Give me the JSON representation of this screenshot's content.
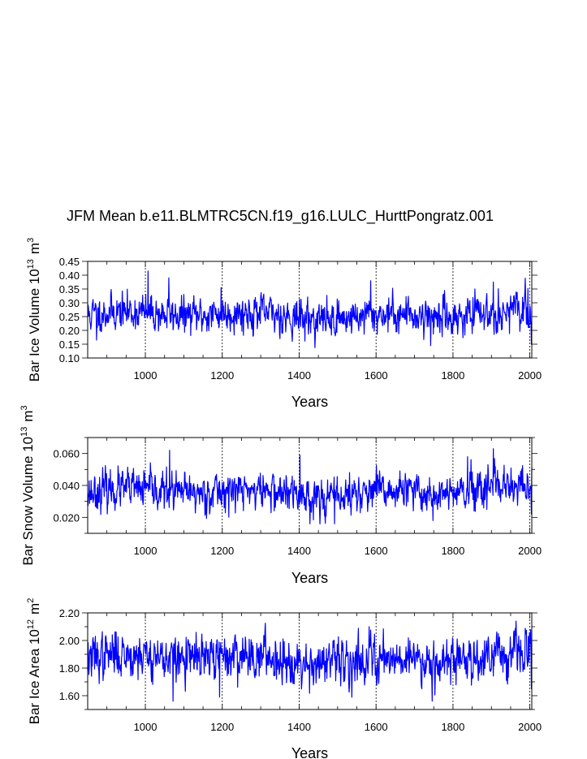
{
  "chart_data": {
    "title": "JFM Mean b.e11.BLMTRC5CN.f19_g16.LULC_HurttPongratz.001",
    "panels": [
      {
        "type": "line",
        "ylabel_main": "Bar Ice Volume 10",
        "ylabel_exp": "13",
        "ylabel_unit": "m",
        "ylabel_unit_exp": "3",
        "xlabel": "Years",
        "xlim": [
          850,
          2005
        ],
        "ylim": [
          0.1,
          0.45
        ],
        "yticks": [
          0.1,
          0.15,
          0.2,
          0.25,
          0.3,
          0.35,
          0.4,
          0.45
        ],
        "ytick_labels": [
          "0.10",
          "0.15",
          "0.20",
          "0.25",
          "0.30",
          "0.35",
          "0.40",
          "0.45"
        ],
        "xticks": [
          1000,
          1200,
          1400,
          1600,
          1800,
          2000
        ],
        "xtick_labels": [
          "1000",
          "1200",
          "1400",
          "1600",
          "1800",
          "2000"
        ],
        "line_color": "#0000ff",
        "series": {
          "start_year": 850,
          "end_year": 2005,
          "base_mean": 0.255,
          "noise_sd": 0.034,
          "seed": 11,
          "peaks": [
            [
              1007,
              0.415
            ],
            [
              1061,
              0.39
            ],
            [
              1197,
              0.355
            ],
            [
              1586,
              0.38
            ],
            [
              1905,
              0.375
            ],
            [
              1995,
              0.352
            ]
          ],
          "troughs": [
            [
              873,
              0.165
            ],
            [
              1742,
              0.145
            ],
            [
              2004,
              0.15
            ]
          ]
        }
      },
      {
        "type": "line",
        "ylabel_main": "Bar Snow Volume 10",
        "ylabel_exp": "13",
        "ylabel_unit": "m",
        "ylabel_unit_exp": "3",
        "xlabel": "Years",
        "xlim": [
          850,
          2005
        ],
        "ylim": [
          0.01,
          0.07
        ],
        "yticks": [
          0.02,
          0.04,
          0.06
        ],
        "ytick_labels": [
          "0.020",
          "0.040",
          "0.060"
        ],
        "yminor": [
          0.01,
          0.03,
          0.05,
          0.07
        ],
        "xticks": [
          1000,
          1200,
          1400,
          1600,
          1800,
          2000
        ],
        "xtick_labels": [
          "1000",
          "1200",
          "1400",
          "1600",
          "1800",
          "2000"
        ],
        "line_color": "#0000ff",
        "series": {
          "start_year": 850,
          "end_year": 2005,
          "base_mean": 0.0355,
          "noise_sd": 0.0062,
          "seed": 23,
          "peaks": [
            [
              1063,
              0.062
            ],
            [
              1402,
              0.059
            ],
            [
              1905,
              0.063
            ],
            [
              1838,
              0.058
            ]
          ],
          "troughs": [
            [
              1492,
              0.016
            ],
            [
              1748,
              0.018
            ],
            [
              2004,
              0.022
            ]
          ]
        }
      },
      {
        "type": "line",
        "ylabel_main": "Bar Ice Area 10",
        "ylabel_exp": "12",
        "ylabel_unit": "m",
        "ylabel_unit_exp": "2",
        "xlabel": "Years",
        "xlim": [
          850,
          2005
        ],
        "ylim": [
          1.5,
          2.2
        ],
        "yticks": [
          1.6,
          1.8,
          2.0,
          2.2
        ],
        "ytick_labels": [
          "1.60",
          "1.80",
          "2.00",
          "2.20"
        ],
        "yminor": [
          1.5,
          1.7,
          1.9,
          2.1
        ],
        "xticks": [
          1000,
          1200,
          1400,
          1600,
          1800,
          2000
        ],
        "xtick_labels": [
          "1000",
          "1200",
          "1400",
          "1600",
          "1800",
          "2000"
        ],
        "line_color": "#0000ff",
        "series": {
          "start_year": 850,
          "end_year": 2005,
          "base_mean": 1.87,
          "noise_sd": 0.085,
          "seed": 37,
          "peaks": [
            [
              1582,
              2.1
            ],
            [
              1918,
              2.05
            ],
            [
              1996,
              2.03
            ]
          ],
          "troughs": [
            [
              1072,
              1.56
            ],
            [
              1746,
              1.56
            ],
            [
              1193,
              1.59
            ],
            [
              2004,
              1.65
            ]
          ]
        }
      }
    ]
  }
}
